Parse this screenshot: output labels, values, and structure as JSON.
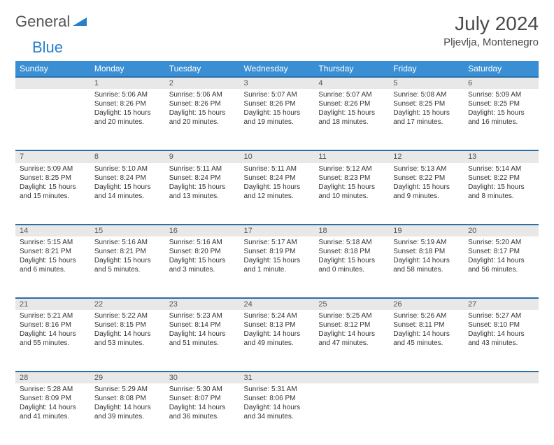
{
  "logo": {
    "word1": "General",
    "word2": "Blue"
  },
  "title": "July 2024",
  "location": "Pljevlja, Montenegro",
  "colors": {
    "header_bg": "#3a8fd4",
    "header_text": "#ffffff",
    "daynum_bg": "#e8e8e8",
    "row_border": "#2a6fa8",
    "text": "#333333",
    "logo_gray": "#555555",
    "logo_blue": "#2a7fc9"
  },
  "weekdays": [
    "Sunday",
    "Monday",
    "Tuesday",
    "Wednesday",
    "Thursday",
    "Friday",
    "Saturday"
  ],
  "weeks": [
    {
      "nums": [
        "",
        "1",
        "2",
        "3",
        "4",
        "5",
        "6"
      ],
      "cells": [
        null,
        {
          "sr": "Sunrise: 5:06 AM",
          "ss": "Sunset: 8:26 PM",
          "dl1": "Daylight: 15 hours",
          "dl2": "and 20 minutes."
        },
        {
          "sr": "Sunrise: 5:06 AM",
          "ss": "Sunset: 8:26 PM",
          "dl1": "Daylight: 15 hours",
          "dl2": "and 20 minutes."
        },
        {
          "sr": "Sunrise: 5:07 AM",
          "ss": "Sunset: 8:26 PM",
          "dl1": "Daylight: 15 hours",
          "dl2": "and 19 minutes."
        },
        {
          "sr": "Sunrise: 5:07 AM",
          "ss": "Sunset: 8:26 PM",
          "dl1": "Daylight: 15 hours",
          "dl2": "and 18 minutes."
        },
        {
          "sr": "Sunrise: 5:08 AM",
          "ss": "Sunset: 8:25 PM",
          "dl1": "Daylight: 15 hours",
          "dl2": "and 17 minutes."
        },
        {
          "sr": "Sunrise: 5:09 AM",
          "ss": "Sunset: 8:25 PM",
          "dl1": "Daylight: 15 hours",
          "dl2": "and 16 minutes."
        }
      ]
    },
    {
      "nums": [
        "7",
        "8",
        "9",
        "10",
        "11",
        "12",
        "13"
      ],
      "cells": [
        {
          "sr": "Sunrise: 5:09 AM",
          "ss": "Sunset: 8:25 PM",
          "dl1": "Daylight: 15 hours",
          "dl2": "and 15 minutes."
        },
        {
          "sr": "Sunrise: 5:10 AM",
          "ss": "Sunset: 8:24 PM",
          "dl1": "Daylight: 15 hours",
          "dl2": "and 14 minutes."
        },
        {
          "sr": "Sunrise: 5:11 AM",
          "ss": "Sunset: 8:24 PM",
          "dl1": "Daylight: 15 hours",
          "dl2": "and 13 minutes."
        },
        {
          "sr": "Sunrise: 5:11 AM",
          "ss": "Sunset: 8:24 PM",
          "dl1": "Daylight: 15 hours",
          "dl2": "and 12 minutes."
        },
        {
          "sr": "Sunrise: 5:12 AM",
          "ss": "Sunset: 8:23 PM",
          "dl1": "Daylight: 15 hours",
          "dl2": "and 10 minutes."
        },
        {
          "sr": "Sunrise: 5:13 AM",
          "ss": "Sunset: 8:22 PM",
          "dl1": "Daylight: 15 hours",
          "dl2": "and 9 minutes."
        },
        {
          "sr": "Sunrise: 5:14 AM",
          "ss": "Sunset: 8:22 PM",
          "dl1": "Daylight: 15 hours",
          "dl2": "and 8 minutes."
        }
      ]
    },
    {
      "nums": [
        "14",
        "15",
        "16",
        "17",
        "18",
        "19",
        "20"
      ],
      "cells": [
        {
          "sr": "Sunrise: 5:15 AM",
          "ss": "Sunset: 8:21 PM",
          "dl1": "Daylight: 15 hours",
          "dl2": "and 6 minutes."
        },
        {
          "sr": "Sunrise: 5:16 AM",
          "ss": "Sunset: 8:21 PM",
          "dl1": "Daylight: 15 hours",
          "dl2": "and 5 minutes."
        },
        {
          "sr": "Sunrise: 5:16 AM",
          "ss": "Sunset: 8:20 PM",
          "dl1": "Daylight: 15 hours",
          "dl2": "and 3 minutes."
        },
        {
          "sr": "Sunrise: 5:17 AM",
          "ss": "Sunset: 8:19 PM",
          "dl1": "Daylight: 15 hours",
          "dl2": "and 1 minute."
        },
        {
          "sr": "Sunrise: 5:18 AM",
          "ss": "Sunset: 8:18 PM",
          "dl1": "Daylight: 15 hours",
          "dl2": "and 0 minutes."
        },
        {
          "sr": "Sunrise: 5:19 AM",
          "ss": "Sunset: 8:18 PM",
          "dl1": "Daylight: 14 hours",
          "dl2": "and 58 minutes."
        },
        {
          "sr": "Sunrise: 5:20 AM",
          "ss": "Sunset: 8:17 PM",
          "dl1": "Daylight: 14 hours",
          "dl2": "and 56 minutes."
        }
      ]
    },
    {
      "nums": [
        "21",
        "22",
        "23",
        "24",
        "25",
        "26",
        "27"
      ],
      "cells": [
        {
          "sr": "Sunrise: 5:21 AM",
          "ss": "Sunset: 8:16 PM",
          "dl1": "Daylight: 14 hours",
          "dl2": "and 55 minutes."
        },
        {
          "sr": "Sunrise: 5:22 AM",
          "ss": "Sunset: 8:15 PM",
          "dl1": "Daylight: 14 hours",
          "dl2": "and 53 minutes."
        },
        {
          "sr": "Sunrise: 5:23 AM",
          "ss": "Sunset: 8:14 PM",
          "dl1": "Daylight: 14 hours",
          "dl2": "and 51 minutes."
        },
        {
          "sr": "Sunrise: 5:24 AM",
          "ss": "Sunset: 8:13 PM",
          "dl1": "Daylight: 14 hours",
          "dl2": "and 49 minutes."
        },
        {
          "sr": "Sunrise: 5:25 AM",
          "ss": "Sunset: 8:12 PM",
          "dl1": "Daylight: 14 hours",
          "dl2": "and 47 minutes."
        },
        {
          "sr": "Sunrise: 5:26 AM",
          "ss": "Sunset: 8:11 PM",
          "dl1": "Daylight: 14 hours",
          "dl2": "and 45 minutes."
        },
        {
          "sr": "Sunrise: 5:27 AM",
          "ss": "Sunset: 8:10 PM",
          "dl1": "Daylight: 14 hours",
          "dl2": "and 43 minutes."
        }
      ]
    },
    {
      "nums": [
        "28",
        "29",
        "30",
        "31",
        "",
        "",
        ""
      ],
      "cells": [
        {
          "sr": "Sunrise: 5:28 AM",
          "ss": "Sunset: 8:09 PM",
          "dl1": "Daylight: 14 hours",
          "dl2": "and 41 minutes."
        },
        {
          "sr": "Sunrise: 5:29 AM",
          "ss": "Sunset: 8:08 PM",
          "dl1": "Daylight: 14 hours",
          "dl2": "and 39 minutes."
        },
        {
          "sr": "Sunrise: 5:30 AM",
          "ss": "Sunset: 8:07 PM",
          "dl1": "Daylight: 14 hours",
          "dl2": "and 36 minutes."
        },
        {
          "sr": "Sunrise: 5:31 AM",
          "ss": "Sunset: 8:06 PM",
          "dl1": "Daylight: 14 hours",
          "dl2": "and 34 minutes."
        },
        null,
        null,
        null
      ]
    }
  ]
}
